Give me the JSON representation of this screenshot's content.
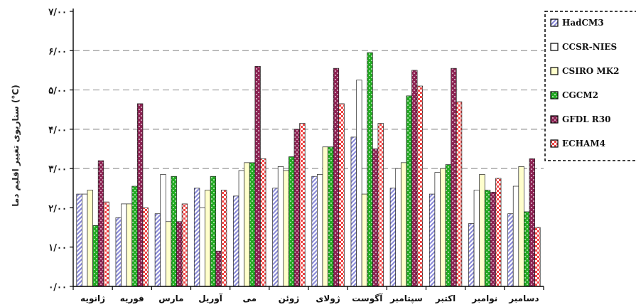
{
  "chart_data": {
    "type": "bar",
    "categories": [
      "ژانویه",
      "فوریه",
      "مارس",
      "آوریل",
      "می",
      "ژوئن",
      "ژولای",
      "آگوست",
      "سپتامبر",
      "اکتبر",
      "نوامبر",
      "دسامبر"
    ],
    "y_tick_labels": [
      "۰/۰۰",
      "۱/۰۰",
      "۲/۰۰",
      "۳/۰۰",
      "۴/۰۰",
      "۵/۰۰",
      "۶/۰۰",
      "۷/۰۰"
    ],
    "ylabel": "سناریوی تغییر اقلیم دما (°C)",
    "ylim": [
      0,
      7
    ],
    "grid": "horizontal dashed at 3, 4, 5, 6",
    "legend_position": "right",
    "series": [
      {
        "name": "HadCM3",
        "color": "#8c8cd8",
        "pattern": "diagonal",
        "values": [
          2.35,
          1.75,
          1.85,
          2.5,
          2.3,
          2.5,
          2.8,
          3.8,
          2.5,
          2.35,
          1.6,
          1.85
        ]
      },
      {
        "name": "CCSR-NIES",
        "color": "#ffffff",
        "pattern": "plain",
        "values": [
          2.35,
          2.1,
          2.85,
          2.0,
          2.95,
          3.05,
          2.85,
          5.25,
          3.0,
          2.9,
          2.45,
          2.55
        ]
      },
      {
        "name": "CSIRO MK2",
        "color": "#ffffcc",
        "pattern": "plain",
        "values": [
          2.45,
          2.1,
          1.65,
          2.45,
          3.15,
          2.95,
          3.55,
          2.35,
          3.15,
          3.0,
          2.85,
          3.05
        ]
      },
      {
        "name": "CGCM2",
        "color": "#22aa22",
        "pattern": "dotted",
        "values": [
          1.55,
          2.55,
          2.8,
          2.8,
          3.15,
          3.3,
          3.55,
          5.95,
          4.85,
          3.1,
          2.45,
          1.9
        ]
      },
      {
        "name": "GFDL R30",
        "color": "#8b2252",
        "pattern": "dotted",
        "values": [
          3.2,
          4.65,
          1.65,
          0.9,
          5.6,
          4.0,
          5.55,
          3.5,
          5.5,
          5.55,
          2.4,
          3.25
        ]
      },
      {
        "name": "ECHAM4",
        "color": "#ee4444",
        "pattern": "checkered",
        "values": [
          2.15,
          2.0,
          2.1,
          2.45,
          3.25,
          4.15,
          4.65,
          4.15,
          5.1,
          4.7,
          2.75,
          1.5
        ]
      }
    ]
  }
}
